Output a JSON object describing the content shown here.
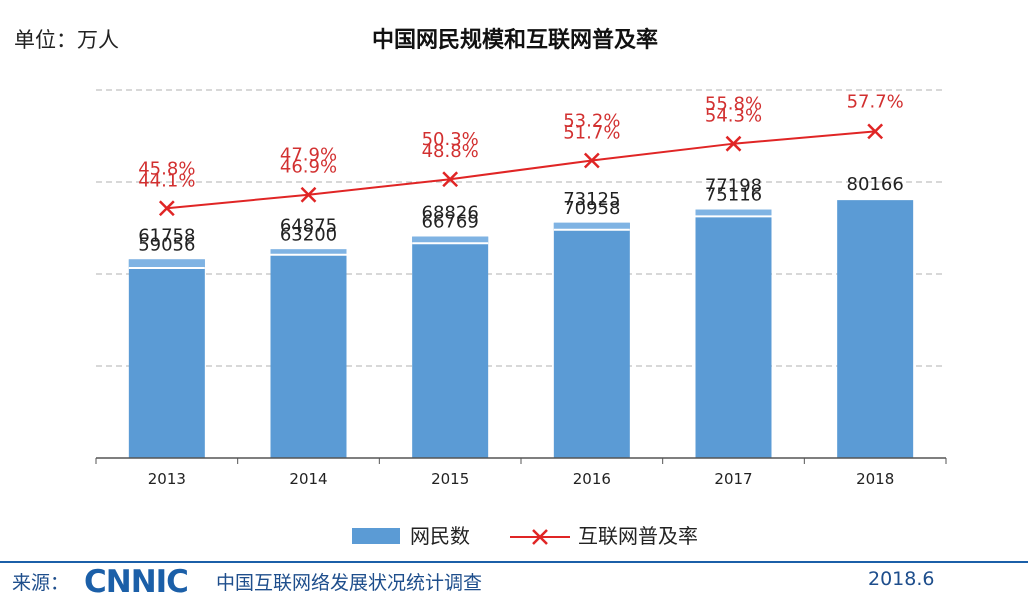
{
  "header": {
    "unit": "单位：万人"
  },
  "footer": {
    "source_label": "来源：",
    "logo": "CNNIC",
    "organization": "中国互联网络发展状况统计调查",
    "date": "2018.6"
  },
  "colors": {
    "bar": "#5b9bd5",
    "bar_top": "#7fb3e3",
    "line": "#e02525",
    "label": "#d23030",
    "grid": "#b0b0b0",
    "axis": "#555555"
  },
  "chart_data": {
    "type": "bar",
    "title": "中国网民规模和互联网普及率",
    "categories": [
      "2013",
      "2014",
      "2015",
      "2016",
      "2017",
      "2018"
    ],
    "bar_labels": [
      "61758\n59056",
      "64875\n63200",
      "68826\n66769",
      "73125\n70958",
      "77198\n75116",
      "80166"
    ],
    "line_labels": [
      "45.8%\n44.1%",
      "47.9%\n46.9%",
      "50.3%\n48.8%",
      "53.2%\n51.7%",
      "55.8%\n54.3%",
      "57.7%"
    ],
    "series": [
      {
        "name": "网民数",
        "type": "bar",
        "values": [
          61758,
          64875,
          68826,
          73125,
          77198,
          80166
        ],
        "inner_values": [
          59056,
          63200,
          66769,
          70958,
          75116,
          null
        ]
      },
      {
        "name": "互联网普及率",
        "type": "line",
        "values": [
          45.8,
          47.9,
          50.3,
          53.2,
          55.8,
          57.7
        ],
        "inner_values": [
          44.1,
          46.9,
          48.8,
          51.7,
          54.3,
          null
        ]
      }
    ],
    "ylim": [
      0,
      120000
    ],
    "y2lim": [
      0,
      70
    ],
    "grid": true,
    "legend": "bottom"
  }
}
